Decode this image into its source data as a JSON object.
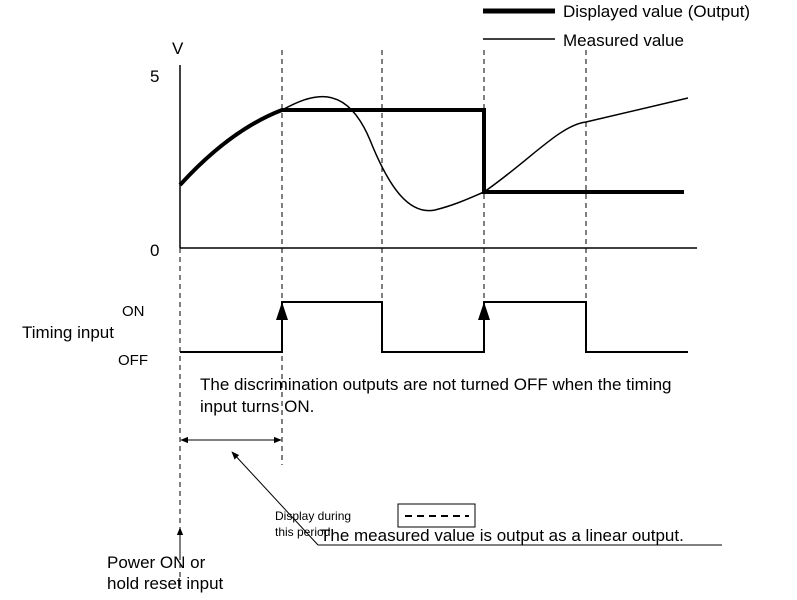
{
  "legend": {
    "displayed": "Displayed value (Output)",
    "measured": "Measured value"
  },
  "axis": {
    "unit": "V",
    "top": "5",
    "bottom": "0"
  },
  "timing": {
    "label": "Timing input",
    "on": "ON",
    "off": "OFF"
  },
  "note": [
    "The discrimination outputs are not turned OFF when the timing",
    "input turns ON."
  ],
  "display_period": [
    "Display during",
    "this period:"
  ],
  "linear_note": "The measured value is output as a linear output.",
  "power": [
    "Power ON or",
    "hold reset input"
  ]
}
